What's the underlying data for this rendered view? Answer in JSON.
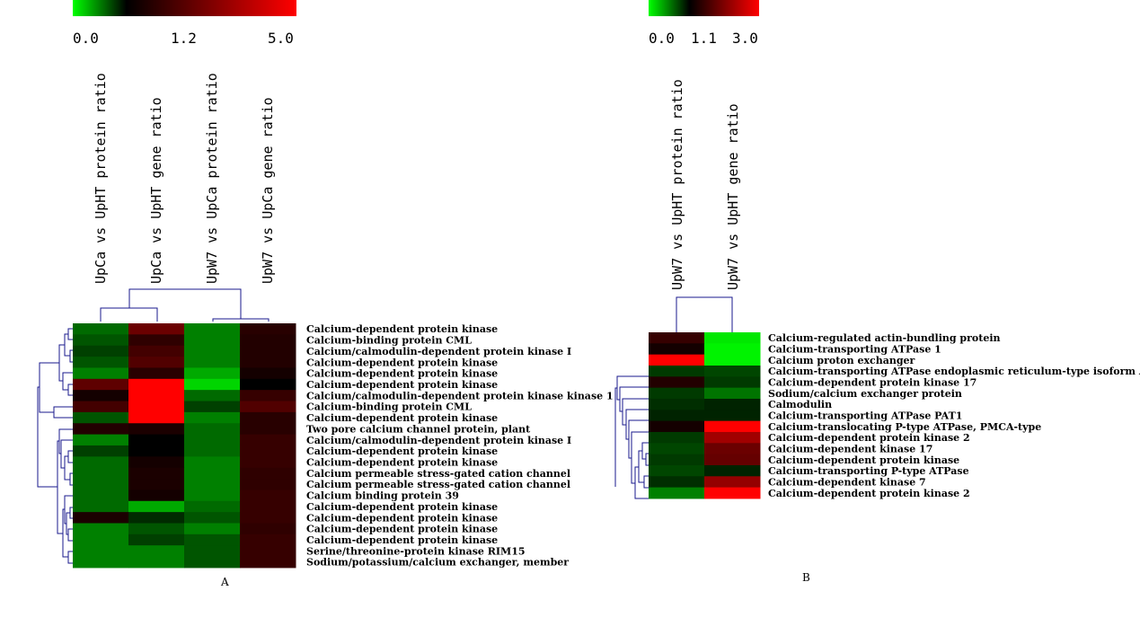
{
  "chart_data": [
    {
      "type": "heatmap",
      "panel_label": "A",
      "colorscale": {
        "low_color": "#00ff00",
        "mid_color": "#000000",
        "high_color": "#ff0000",
        "tick_labels": [
          "0.0",
          "1.2",
          "5.0"
        ],
        "min": 0.0,
        "mid": 1.2,
        "max": 5.0
      },
      "columns": [
        "UpCa vs UpHT protein ratio",
        "UpCa vs UpHT gene ratio",
        "UpW7 vs UpCa protein ratio",
        "UpW7 vs UpCa gene ratio"
      ],
      "rows": [
        "Calcium-dependent protein kinase",
        "Calcium-binding protein CML",
        "Calcium/calmodulin-dependent protein kinase I",
        "Calcium-dependent protein kinase",
        "Calcium-dependent protein kinase",
        "Calcium-dependent protein kinase",
        "Calcium/calmodulin-dependent protein kinase kinase 1",
        "Calcium-binding protein CML",
        "Calcium-dependent protein kinase",
        "Two pore calcium channel protein, plant",
        "Calcium/calmodulin-dependent protein kinase I",
        "Calcium-dependent protein kinase",
        "Calcium-dependent protein kinase",
        "Calcium permeable stress-gated cation channel",
        "Calcium permeable stress-gated cation channel",
        "Calcium binding protein 39",
        "Calcium-dependent protein kinase",
        "Calcium-dependent protein kinase",
        "Calcium-dependent protein kinase",
        "Calcium-dependent protein kinase",
        "Serine/threonine-protein kinase RIM15",
        "Sodium/potassium/calcium exchanger, member"
      ],
      "values": [
        [
          0.7,
          2.8,
          0.6,
          1.8
        ],
        [
          0.8,
          1.9,
          0.6,
          1.7
        ],
        [
          0.9,
          2.2,
          0.6,
          1.7
        ],
        [
          0.8,
          2.4,
          0.6,
          1.7
        ],
        [
          0.6,
          1.8,
          0.4,
          1.5
        ],
        [
          2.6,
          5.0,
          0.2,
          1.2
        ],
        [
          1.5,
          5.0,
          0.7,
          2.0
        ],
        [
          2.2,
          5.0,
          0.9,
          2.4
        ],
        [
          0.8,
          5.0,
          0.6,
          1.8
        ],
        [
          1.7,
          1.6,
          0.7,
          1.8
        ],
        [
          0.6,
          1.2,
          0.7,
          2.0
        ],
        [
          0.9,
          1.2,
          0.7,
          2.0
        ],
        [
          0.7,
          1.5,
          0.6,
          2.0
        ],
        [
          0.7,
          1.6,
          0.6,
          1.9
        ],
        [
          0.7,
          1.6,
          0.6,
          1.9
        ],
        [
          0.7,
          1.5,
          0.6,
          2.0
        ],
        [
          0.7,
          0.4,
          0.7,
          2.0
        ],
        [
          1.6,
          1.0,
          0.8,
          2.0
        ],
        [
          0.6,
          0.8,
          0.6,
          1.9
        ],
        [
          0.6,
          0.9,
          0.8,
          2.0
        ],
        [
          0.6,
          0.6,
          0.8,
          2.0
        ],
        [
          0.6,
          0.6,
          0.8,
          2.0
        ]
      ]
    },
    {
      "type": "heatmap",
      "panel_label": "B",
      "colorscale": {
        "low_color": "#00ff00",
        "mid_color": "#000000",
        "high_color": "#ff0000",
        "tick_labels": [
          "0.0",
          "1.1",
          "3.0"
        ],
        "min": 0.0,
        "mid": 1.1,
        "max": 3.0
      },
      "columns": [
        "UpW7 vs UpHT protein ratio",
        "UpW7 vs UpHT gene ratio"
      ],
      "rows": [
        "Calcium-regulated actin-bundling protein",
        "Calcium-transporting ATPase 1",
        "Calcium proton exchanger",
        "Calcium-transporting ATPase endoplasmic reticulum-type isoform A",
        "Calcium-dependent protein kinase 17",
        "Sodium/calcium exchanger protein",
        "Calmodulin",
        "Calcium-transporting ATPase PAT1",
        "Calcium-translocating P-type ATPase, PMCA-type",
        "Calcium-dependent protein kinase 2",
        "Calcium-dependent kinase 17",
        "Calcium-dependent protein kinase",
        "Calcium-transporting P-type ATPase",
        "Calcium-dependent kinase 7",
        "Calcium-dependent protein kinase 2"
      ],
      "values": [
        [
          1.5,
          0.1
        ],
        [
          1.25,
          0.05
        ],
        [
          3.0,
          0.05
        ],
        [
          0.85,
          0.8
        ],
        [
          1.35,
          0.85
        ],
        [
          0.85,
          0.6
        ],
        [
          0.9,
          0.95
        ],
        [
          0.95,
          0.95
        ],
        [
          1.25,
          3.0
        ],
        [
          0.85,
          2.3
        ],
        [
          0.8,
          1.9
        ],
        [
          0.85,
          1.85
        ],
        [
          0.8,
          0.95
        ],
        [
          0.9,
          2.2
        ],
        [
          0.55,
          3.0
        ]
      ]
    }
  ]
}
